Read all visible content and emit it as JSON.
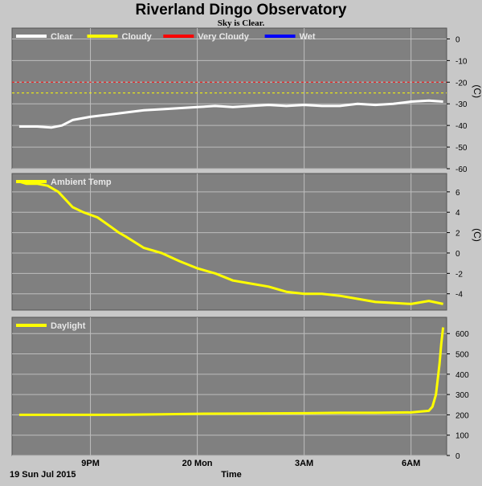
{
  "title": "Riverland Dingo Observatory",
  "subtitle": "Sky is Clear.",
  "x_label": "Time",
  "x_date_label": "19 Sun Jul 2015",
  "colors": {
    "background": "#c8c8c8",
    "plot_bg": "#808080",
    "grid": "#bdbdbd",
    "clear": "#ffffff",
    "cloudy": "#ffff00",
    "very_cloudy": "#ff0000",
    "wet": "#0000ff",
    "legend_text": "#e8e8e8"
  },
  "chart_data": [
    {
      "type": "line",
      "x_ticks": [
        "9PM",
        "20 Mon",
        "3AM",
        "6AM"
      ],
      "x_tick_hours": [
        21,
        24,
        27,
        30
      ],
      "x_range": [
        18.8,
        31.0
      ],
      "ylim": [
        -60,
        5
      ],
      "y_ticks": [
        0,
        -10,
        -20,
        -30,
        -40,
        -50,
        -60
      ],
      "unit": "(C)",
      "legend": [
        "Clear",
        "Cloudy",
        "Very Cloudy",
        "Wet"
      ],
      "thresholds": [
        {
          "name": "Very Cloudy",
          "value": -20
        },
        {
          "name": "Cloudy",
          "value": -25
        }
      ],
      "series": [
        {
          "name": "Clear",
          "x": [
            19.0,
            19.5,
            19.9,
            20.2,
            20.5,
            21.0,
            21.5,
            22.0,
            22.5,
            23.0,
            23.5,
            24.0,
            24.5,
            25.0,
            25.5,
            26.0,
            26.5,
            27.0,
            27.5,
            28.0,
            28.5,
            29.0,
            29.5,
            30.0,
            30.5,
            30.9
          ],
          "values": [
            -40.5,
            -40.5,
            -41,
            -40,
            -37.5,
            -36,
            -35,
            -34,
            -33,
            -32.5,
            -32,
            -31.5,
            -31,
            -31.5,
            -31,
            -30.5,
            -31,
            -30.5,
            -31,
            -31,
            -30,
            -30.5,
            -30,
            -29,
            -28.5,
            -29
          ]
        }
      ]
    },
    {
      "type": "line",
      "x_ticks": [
        "9PM",
        "20 Mon",
        "3AM",
        "6AM"
      ],
      "x_tick_hours": [
        21,
        24,
        27,
        30
      ],
      "x_range": [
        18.8,
        31.0
      ],
      "ylim": [
        -5.6,
        7.8
      ],
      "y_ticks": [
        6,
        4,
        2,
        0,
        -2,
        -4
      ],
      "unit": "(C)",
      "legend": [
        "Ambient Temp"
      ],
      "series": [
        {
          "name": "Ambient Temp",
          "x": [
            19.0,
            19.2,
            19.5,
            19.8,
            20.1,
            20.5,
            20.8,
            21.2,
            21.4,
            21.6,
            21.8,
            22.0,
            22.5,
            23.0,
            23.5,
            24.0,
            24.5,
            25.0,
            25.5,
            26.0,
            26.5,
            27.0,
            27.5,
            28.0,
            28.5,
            29.0,
            29.5,
            30.0,
            30.5,
            30.9
          ],
          "values": [
            7.0,
            6.8,
            6.8,
            6.6,
            6.0,
            4.5,
            4.0,
            3.5,
            3.0,
            2.5,
            2.0,
            1.6,
            0.5,
            0.0,
            -0.8,
            -1.5,
            -2.0,
            -2.7,
            -3.0,
            -3.3,
            -3.8,
            -4.0,
            -4.0,
            -4.2,
            -4.5,
            -4.8,
            -4.9,
            -5.0,
            -4.7,
            -5.0
          ]
        }
      ]
    },
    {
      "type": "line",
      "x_ticks": [
        "9PM",
        "20 Mon",
        "3AM",
        "6AM"
      ],
      "x_tick_hours": [
        21,
        24,
        27,
        30
      ],
      "x_range": [
        18.8,
        31.0
      ],
      "ylim": [
        0,
        680
      ],
      "y_ticks": [
        600,
        500,
        400,
        300,
        200,
        100,
        0
      ],
      "unit": "",
      "legend": [
        "Daylight"
      ],
      "series": [
        {
          "name": "Daylight",
          "x": [
            19.0,
            20.0,
            21.0,
            22.0,
            23.0,
            24.0,
            25.0,
            26.0,
            27.0,
            28.0,
            29.0,
            30.0,
            30.5,
            30.6,
            30.7,
            30.8,
            30.85,
            30.9
          ],
          "values": [
            200,
            200,
            200,
            201,
            203,
            205,
            206,
            207,
            208,
            210,
            210,
            212,
            220,
            240,
            300,
            450,
            550,
            630
          ]
        }
      ]
    }
  ]
}
